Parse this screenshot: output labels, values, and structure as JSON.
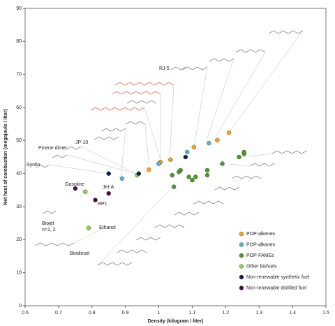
{
  "chart_data": {
    "type": "scatter",
    "x_label": "Density (kilogram / liter)",
    "y_label": "Net heat of combustion (megajoule / liter)",
    "xlim": [
      0.6,
      1.5
    ],
    "xticks": [
      0.6,
      0.7,
      0.8,
      0.9,
      1,
      1.1,
      1.2,
      1.3,
      1.4,
      1.5
    ],
    "ylim": [
      0,
      90
    ],
    "yticks": [
      0,
      10,
      20,
      30,
      40,
      50,
      60,
      70,
      80,
      90
    ],
    "legend": "lower right",
    "series": [
      {
        "name": "POP-alkenes",
        "color": "#f5a623",
        "x": [
          0.97,
          1.0,
          1.005,
          1.035,
          1.105,
          1.175,
          1.21
        ],
        "values": [
          41.2,
          43,
          43.5,
          44.2,
          48,
          50.1,
          52.4
        ]
      },
      {
        "name": "POP-alkanes",
        "color": "#5ab4d6",
        "x": [
          0.89,
          1.0,
          1.085,
          1.15
        ],
        "values": [
          38.5,
          43,
          46.5,
          49.2
        ]
      },
      {
        "name": "POP-FAMEs",
        "color": "#4c9a2a",
        "x": [
          1.04,
          1.06,
          1.065,
          1.045,
          1.09,
          1.1,
          1.11,
          1.145,
          1.145,
          1.19,
          1.24,
          1.255,
          1.255
        ],
        "values": [
          39.5,
          40.5,
          41,
          36,
          39,
          38,
          39,
          41,
          39.5,
          43,
          45,
          46,
          46.5
        ]
      },
      {
        "name": "Other biofuels",
        "color": "#8fd14f",
        "x": [
          0.78,
          0.79,
          0.935
        ],
        "values": [
          34.5,
          23.5,
          39.5
        ]
      },
      {
        "name": "Non-renewable synthetic fuel",
        "color": "#0a1f4d",
        "x": [
          0.85,
          0.94,
          1.08
        ],
        "values": [
          40,
          40,
          45
        ]
      },
      {
        "name": "Non-renewable distilled fuel",
        "color": "#4a0a3a",
        "x": [
          0.75,
          0.81,
          0.85
        ],
        "values": [
          35.5,
          32,
          34
        ]
      }
    ],
    "annotations": [
      "Gasoline",
      "Jet-A",
      "RP1",
      "Ethanol",
      "Biojet",
      "n=1, 2",
      "Biodiesel",
      "Syntin",
      "Pinene dimer",
      "JP-10",
      "RJ-5"
    ]
  }
}
